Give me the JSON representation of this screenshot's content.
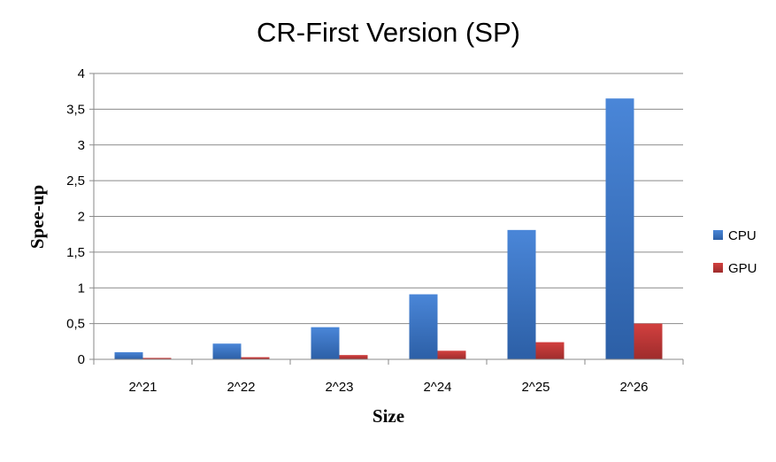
{
  "chart_data": {
    "type": "bar",
    "title": "CR-First Version (SP)",
    "xlabel": "Size",
    "ylabel": "Spee-up",
    "categories": [
      "2^21",
      "2^22",
      "2^23",
      "2^24",
      "2^25",
      "2^26"
    ],
    "series": [
      {
        "name": "CPU",
        "values": [
          0.1,
          0.22,
          0.45,
          0.91,
          1.81,
          3.65
        ],
        "color": "#3a72c4"
      },
      {
        "name": "GPU",
        "values": [
          0.02,
          0.03,
          0.06,
          0.12,
          0.24,
          0.5
        ],
        "color": "#c0393a"
      }
    ],
    "ylim": [
      0,
      4
    ],
    "yticks": [
      "0",
      "0,5",
      "1",
      "1,5",
      "2",
      "2,5",
      "3",
      "3,5",
      "4"
    ],
    "ytick_values": [
      0,
      0.5,
      1,
      1.5,
      2,
      2.5,
      3,
      3.5,
      4
    ],
    "grid": true,
    "legend": "right"
  }
}
